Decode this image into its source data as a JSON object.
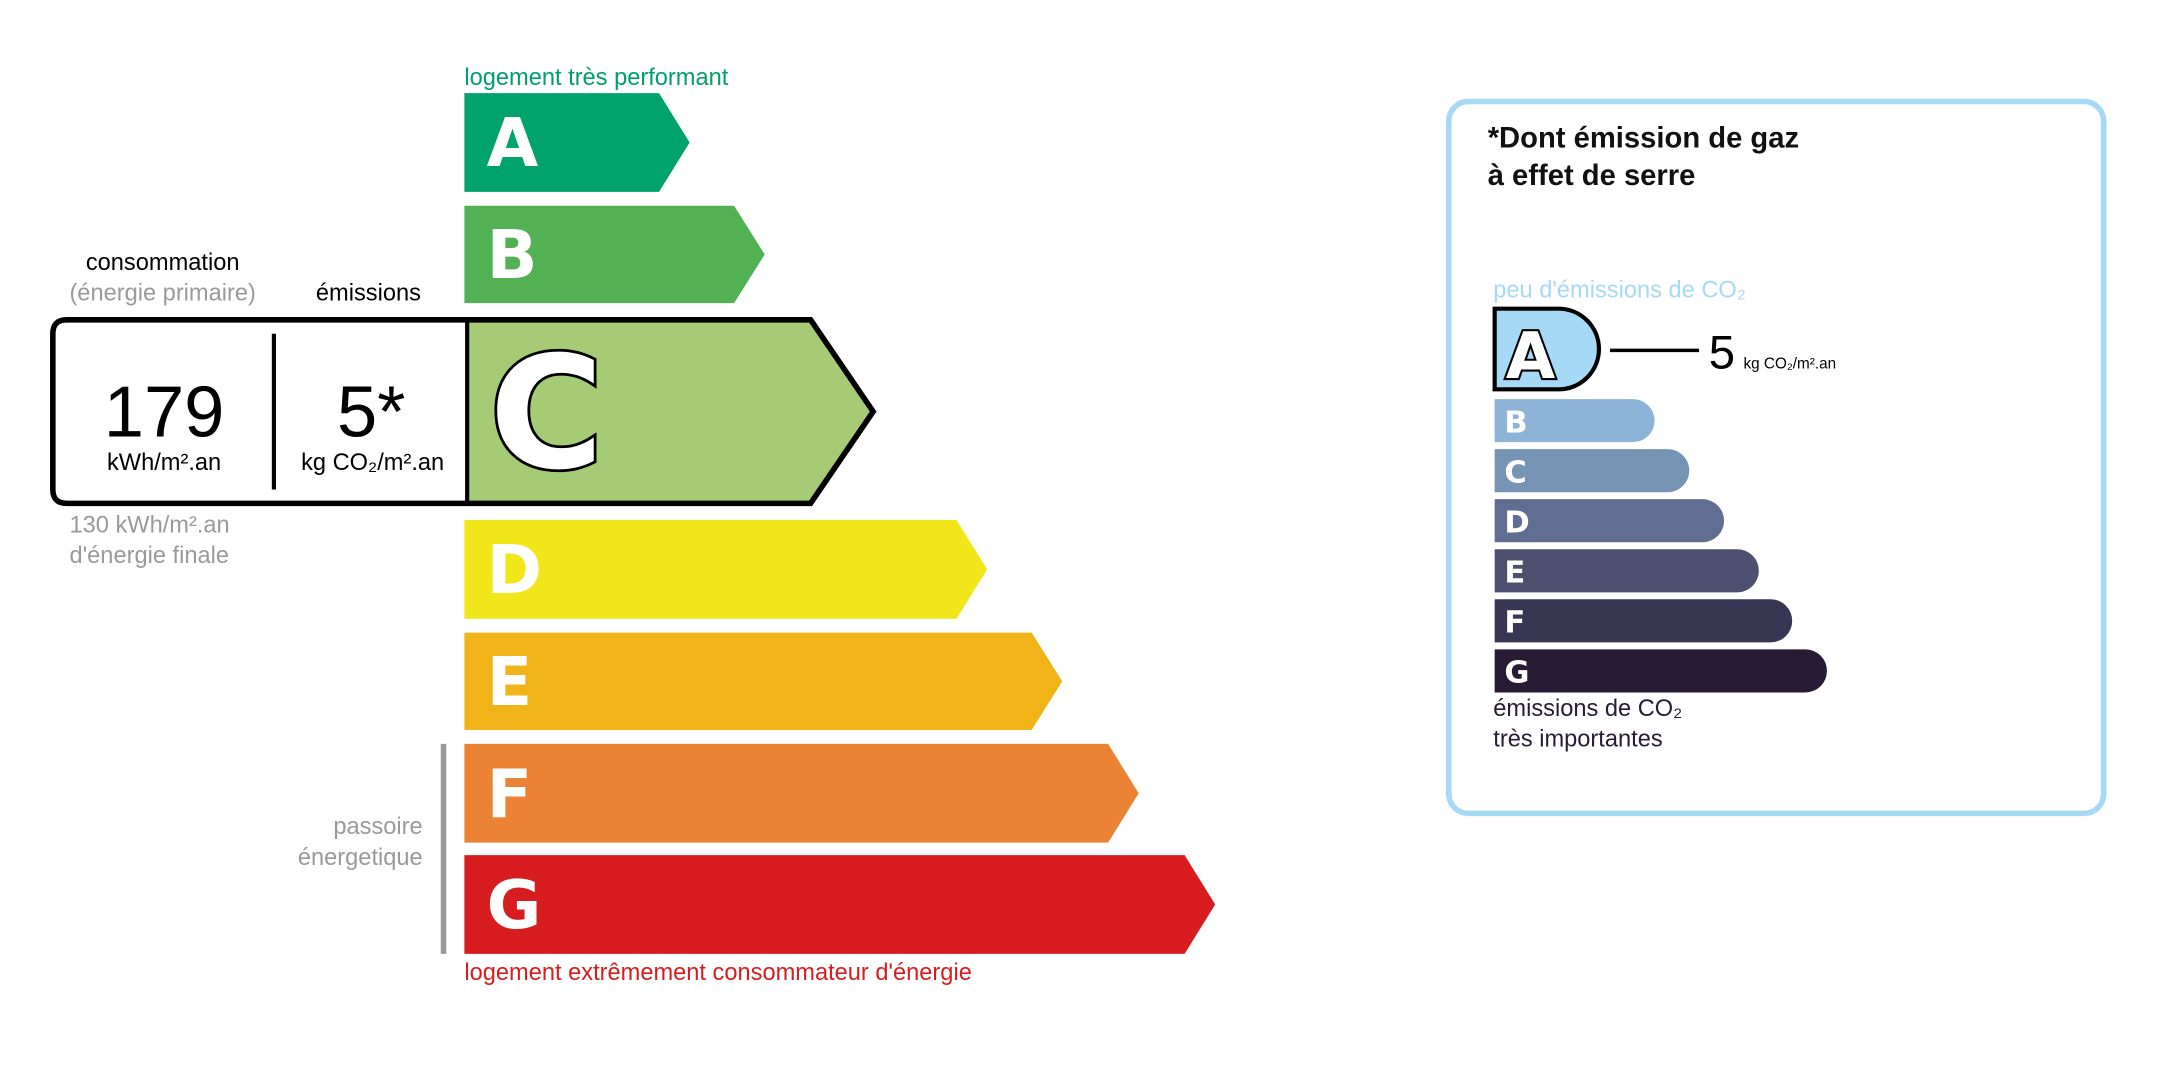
{
  "energy": {
    "top_label": "logement très performant",
    "bottom_label": "logement extrêmement consommateur d'énergie",
    "classes": [
      {
        "letter": "A",
        "color": "#00a36c"
      },
      {
        "letter": "B",
        "color": "#52b153"
      },
      {
        "letter": "C",
        "color": "#a5cc74"
      },
      {
        "letter": "D",
        "color": "#f1e61a"
      },
      {
        "letter": "E",
        "color": "#f0b418"
      },
      {
        "letter": "F",
        "color": "#eb8234"
      },
      {
        "letter": "G",
        "color": "#d71d1f"
      }
    ],
    "current_class": "C",
    "consumption_label": "consommation",
    "consumption_sublabel": "(énergie primaire)",
    "emissions_label": "émissions",
    "consumption_value": "179",
    "consumption_unit": "kWh/m².an",
    "emissions_value": "5*",
    "emissions_unit": "kg CO₂/m².an",
    "final_energy_line1": "130 kWh/m².an",
    "final_energy_line2": "d'énergie finale",
    "passoire_line1": "passoire",
    "passoire_line2": "énergetique",
    "top_label_color": "#00a06b",
    "bottom_label_color": "#d71d1f"
  },
  "ghg": {
    "title_line1": "*Dont émission de gaz",
    "title_line2": "à effet de serre",
    "top_label": "peu d'émissions de CO₂",
    "bottom_label_line1": "émissions de CO₂",
    "bottom_label_line2": "très importantes",
    "current_class": "A",
    "value": "5",
    "unit": "kg CO₂/m².an",
    "border_color": "#a6d9f5",
    "classes": [
      {
        "letter": "A",
        "color": "#a6d9f5"
      },
      {
        "letter": "B",
        "color": "#8db4d6"
      },
      {
        "letter": "C",
        "color": "#7794b5"
      },
      {
        "letter": "D",
        "color": "#5f6e91"
      },
      {
        "letter": "E",
        "color": "#4d4f6f"
      },
      {
        "letter": "F",
        "color": "#393654"
      },
      {
        "letter": "G",
        "color": "#281b35"
      }
    ]
  }
}
